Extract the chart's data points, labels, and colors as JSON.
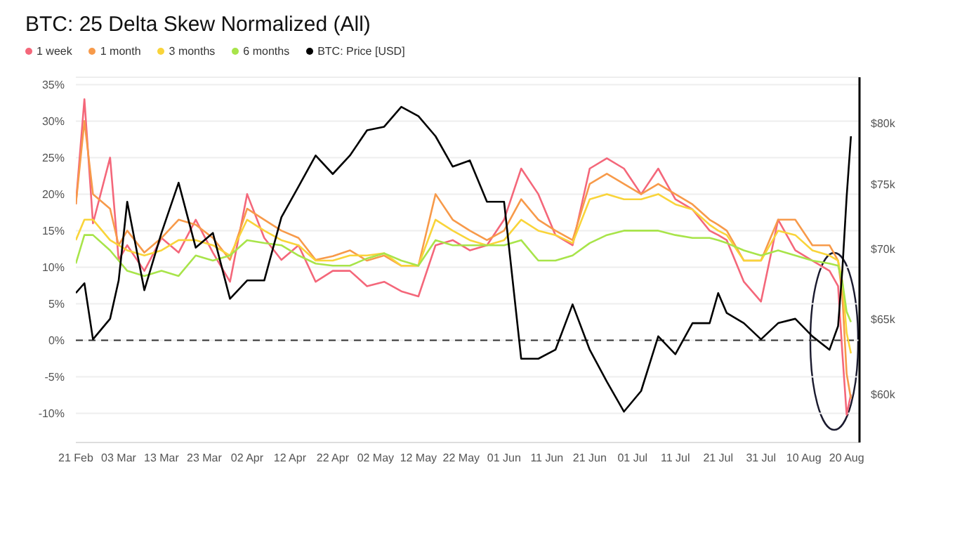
{
  "chart_data": {
    "type": "line",
    "title": "BTC: 25 Delta Skew Normalized (All)",
    "x": [
      "--02-21",
      "--02-23",
      "--02-25",
      "--03-01",
      "--03-03",
      "--03-05",
      "--03-09",
      "--03-13",
      "--03-17",
      "--03-21",
      "--03-25",
      "--03-29",
      "--04-02",
      "--04-06",
      "--04-10",
      "--04-14",
      "--04-18",
      "--04-22",
      "--04-26",
      "--04-30",
      "--05-04",
      "--05-08",
      "--05-12",
      "--05-16",
      "--05-20",
      "--05-24",
      "--05-28",
      "--06-01",
      "--06-05",
      "--06-09",
      "--06-13",
      "--06-17",
      "--06-21",
      "--06-25",
      "--06-29",
      "--07-03",
      "--07-07",
      "--07-11",
      "--07-15",
      "--07-19",
      "--07-21",
      "--07-23",
      "--07-27",
      "--07-31",
      "--08-04",
      "--08-08",
      "--08-12",
      "--08-16",
      "--08-18",
      "--08-19",
      "--08-20",
      "--08-21"
    ],
    "series": [
      {
        "name": "1 week",
        "color": "#f4677a",
        "values": [
          18.6,
          33,
          16,
          25,
          11,
          13,
          9.5,
          14,
          12,
          16.5,
          12,
          8,
          20,
          14,
          11,
          13,
          8,
          9.5,
          9.5,
          7.4,
          8,
          6.7,
          6,
          13,
          13.7,
          12.3,
          13,
          16.5,
          23.5,
          20,
          14.4,
          13,
          23.5,
          24.9,
          23.5,
          20,
          23.5,
          19.3,
          17.9,
          15,
          14.4,
          13.7,
          8,
          5.3,
          16.5,
          12.3,
          10.9,
          9.5,
          7.4,
          -1.8,
          -10.2,
          -7.4
        ]
      },
      {
        "name": "1 month",
        "color": "#f79a4a",
        "values": [
          18.6,
          30,
          20,
          18,
          13,
          15,
          12,
          14,
          16.5,
          15.8,
          14,
          11,
          18,
          16.5,
          15,
          14,
          11,
          11.5,
          12.3,
          10.9,
          11.6,
          10.2,
          10.2,
          20,
          16.5,
          15,
          13.7,
          15,
          19.3,
          16.5,
          15,
          13.7,
          21.4,
          22.8,
          21.4,
          20,
          21.4,
          20,
          18.6,
          16.5,
          15.8,
          15,
          10.9,
          10.9,
          16.5,
          16.5,
          13,
          13,
          10.9,
          6,
          -4.6,
          -8
        ]
      },
      {
        "name": "3 months",
        "color": "#f9d43a",
        "values": [
          13.7,
          16.5,
          16.5,
          13.7,
          13,
          12.3,
          11.6,
          12.3,
          13.7,
          13.7,
          13,
          11.6,
          16.5,
          15,
          13.7,
          13,
          10.9,
          10.9,
          11.6,
          11.6,
          11.9,
          10.2,
          10.2,
          16.5,
          15,
          13.7,
          13,
          13.7,
          16.5,
          15,
          14.4,
          13.3,
          19.3,
          20,
          19.3,
          19.3,
          20,
          18.6,
          17.9,
          15.8,
          15,
          14.4,
          10.9,
          10.9,
          15,
          14.4,
          12.3,
          11.6,
          10.9,
          8,
          1,
          -1.8
        ]
      },
      {
        "name": "6 months",
        "color": "#a8e44a",
        "values": [
          10.5,
          14.4,
          14.4,
          12.3,
          10.9,
          9.5,
          8.8,
          9.5,
          8.8,
          11.6,
          10.9,
          11.6,
          13.7,
          13.3,
          13,
          11.6,
          10.5,
          10.2,
          10.2,
          11.2,
          11.9,
          10.9,
          10.2,
          13.7,
          13,
          13,
          13,
          13,
          13.7,
          10.9,
          10.9,
          11.6,
          13.3,
          14.4,
          15,
          15,
          15,
          14.4,
          14,
          14,
          13.7,
          13.3,
          12.3,
          11.6,
          12.3,
          11.6,
          10.9,
          10.5,
          10.2,
          8,
          3.9,
          2.5
        ]
      },
      {
        "name": "BTC: Price [USD]",
        "color": "#000000",
        "axis": "y2",
        "values": [
          66800,
          67500,
          63600,
          65000,
          67700,
          73600,
          67000,
          71200,
          75100,
          70100,
          71200,
          66400,
          67700,
          67700,
          72400,
          74800,
          77300,
          75800,
          77300,
          79400,
          79700,
          81400,
          80600,
          78900,
          76400,
          76900,
          73600,
          73600,
          62300,
          62300,
          62900,
          66000,
          62900,
          60800,
          58900,
          60200,
          63800,
          62600,
          64700,
          64700,
          66800,
          65400,
          64700,
          63600,
          64700,
          65000,
          63800,
          62900,
          64500,
          68500,
          74000,
          78900
        ]
      }
    ],
    "xlim": [
      "--02-21",
      "--08-23"
    ],
    "xticks": [
      {
        "value": "--02-21",
        "label": "21 Feb"
      },
      {
        "value": "--03-03",
        "label": "03 Mar"
      },
      {
        "value": "--03-13",
        "label": "13 Mar"
      },
      {
        "value": "--03-23",
        "label": "23 Mar"
      },
      {
        "value": "--04-02",
        "label": "02 Apr"
      },
      {
        "value": "--04-12",
        "label": "12 Apr"
      },
      {
        "value": "--04-22",
        "label": "22 Apr"
      },
      {
        "value": "--05-02",
        "label": "02 May"
      },
      {
        "value": "--05-12",
        "label": "12 May"
      },
      {
        "value": "--05-22",
        "label": "22 May"
      },
      {
        "value": "--06-01",
        "label": "01 Jun"
      },
      {
        "value": "--06-11",
        "label": "11 Jun"
      },
      {
        "value": "--06-21",
        "label": "21 Jun"
      },
      {
        "value": "--07-01",
        "label": "01 Jul"
      },
      {
        "value": "--07-11",
        "label": "11 Jul"
      },
      {
        "value": "--07-21",
        "label": "21 Jul"
      },
      {
        "value": "--07-31",
        "label": "31 Jul"
      },
      {
        "value": "--08-10",
        "label": "10 Aug"
      },
      {
        "value": "--08-20",
        "label": "20 Aug"
      }
    ],
    "ylim": [
      -14,
      36
    ],
    "yticks": [
      {
        "value": -10,
        "label": "-10%"
      },
      {
        "value": -5,
        "label": "-5%"
      },
      {
        "value": 0,
        "label": "0%"
      },
      {
        "value": 5,
        "label": "5%"
      },
      {
        "value": 10,
        "label": "10%"
      },
      {
        "value": 15,
        "label": "15%"
      },
      {
        "value": 20,
        "label": "20%"
      },
      {
        "value": 25,
        "label": "25%"
      },
      {
        "value": 30,
        "label": "30%"
      },
      {
        "value": 35,
        "label": "35%"
      }
    ],
    "y2lim": [
      57000,
      84000
    ],
    "y2ticks": [
      {
        "value": 60000,
        "label": "$60k"
      },
      {
        "value": 65000,
        "label": "$65k"
      },
      {
        "value": 70000,
        "label": "$70k"
      },
      {
        "value": 75000,
        "label": "$75k"
      },
      {
        "value": 80000,
        "label": "$80k"
      }
    ],
    "log": "y2",
    "ref_lines": [
      {
        "axis": "y",
        "value": 0,
        "color": "#333333",
        "line_style": "dashed"
      }
    ],
    "grid": "y",
    "legend": "top left"
  }
}
